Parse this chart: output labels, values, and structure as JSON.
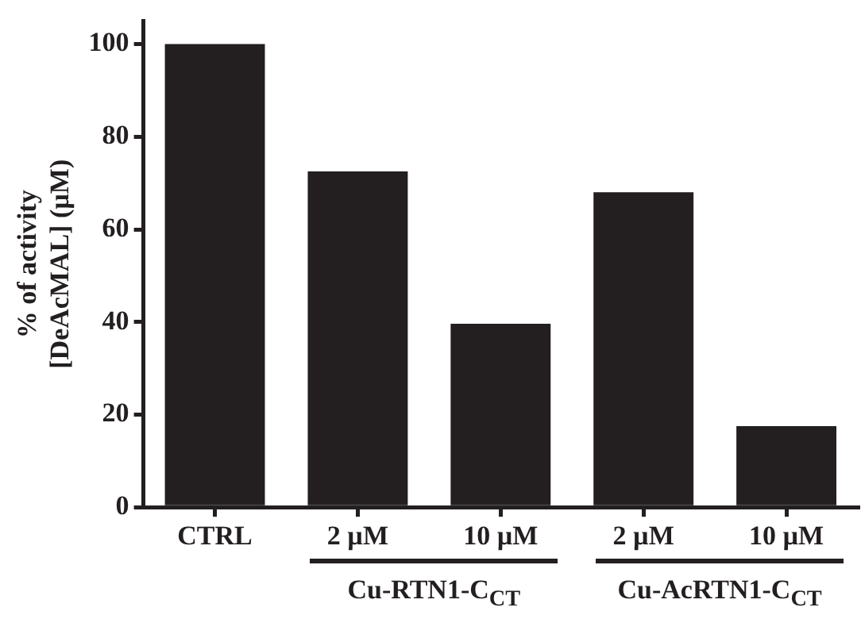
{
  "chart_data": {
    "type": "bar",
    "ylabel": "% of activity\n[DeAcMAL] (µM)",
    "categories": [
      "CTRL",
      "2 µM",
      "10 µM",
      "2 µM",
      "10 µM"
    ],
    "values": [
      100,
      72.5,
      39.6,
      68,
      17.5
    ],
    "color": "#231f20",
    "ylim": [
      0,
      105
    ],
    "yticks": [
      0,
      20,
      40,
      60,
      80,
      100
    ],
    "grid": false,
    "legend": false,
    "annotations": [
      "Cu-RTN1-C$_{CT}$",
      "Cu-AcRTN1-C$_{CT}$"
    ]
  }
}
